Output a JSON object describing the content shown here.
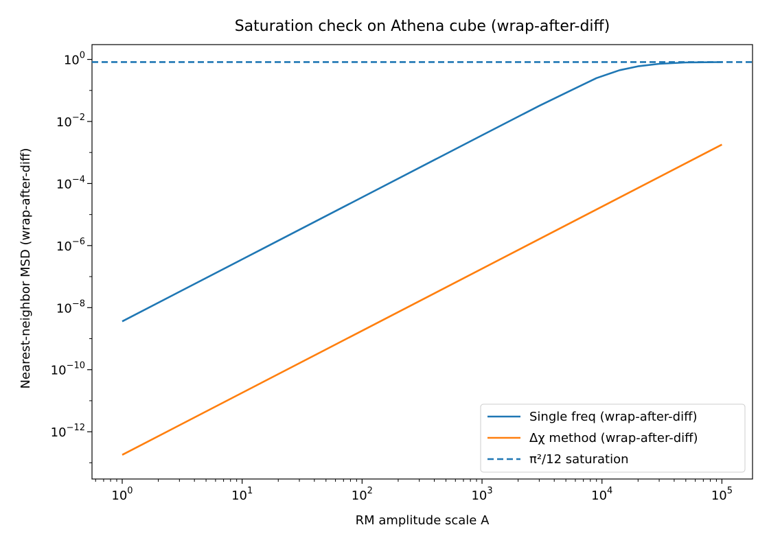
{
  "chart_data": {
    "type": "line",
    "title": "Saturation check on Athena cube (wrap-after-diff)",
    "xlabel": "RM amplitude scale A",
    "ylabel": "Nearest-neighbor MSD (wrap-after-diff)",
    "xscale": "log",
    "yscale": "log",
    "xlim": [
      0.56,
      180000
    ],
    "ylim": [
      3e-14,
      3
    ],
    "x_ticks": [
      {
        "base": "10",
        "exp": "0",
        "value": 1
      },
      {
        "base": "10",
        "exp": "1",
        "value": 10
      },
      {
        "base": "10",
        "exp": "2",
        "value": 100
      },
      {
        "base": "10",
        "exp": "3",
        "value": 1000
      },
      {
        "base": "10",
        "exp": "4",
        "value": 10000
      },
      {
        "base": "10",
        "exp": "5",
        "value": 100000
      }
    ],
    "y_ticks": [
      {
        "base": "10",
        "exp": "0",
        "value": 1
      },
      {
        "base": "10",
        "exp": "−2",
        "value": 0.01
      },
      {
        "base": "10",
        "exp": "−4",
        "value": 0.0001
      },
      {
        "base": "10",
        "exp": "−6",
        "value": 1e-06
      },
      {
        "base": "10",
        "exp": "−8",
        "value": 1e-08
      },
      {
        "base": "10",
        "exp": "−10",
        "value": 1e-10
      },
      {
        "base": "10",
        "exp": "−12",
        "value": 1e-12
      }
    ],
    "grid": false,
    "legend_position": "lower right",
    "series": [
      {
        "name": "Single freq (wrap-after-diff)",
        "color": "#1f77b4",
        "style": "solid",
        "x": [
          1,
          10,
          100,
          1000,
          3000,
          5500,
          9000,
          14000,
          20000,
          30000,
          50000,
          100000
        ],
        "y": [
          3.6e-09,
          3.6e-07,
          3.6e-05,
          0.0036,
          0.032,
          0.1,
          0.25,
          0.45,
          0.6,
          0.72,
          0.8,
          0.82
        ]
      },
      {
        "name": "Δχ method (wrap-after-diff)",
        "color": "#ff7f0e",
        "style": "solid",
        "x": [
          1,
          100000
        ],
        "y": [
          1.8e-13,
          0.0018
        ]
      },
      {
        "name": "π²/12 saturation",
        "color": "#1f77b4",
        "style": "dashed",
        "hline": 0.822
      }
    ]
  }
}
